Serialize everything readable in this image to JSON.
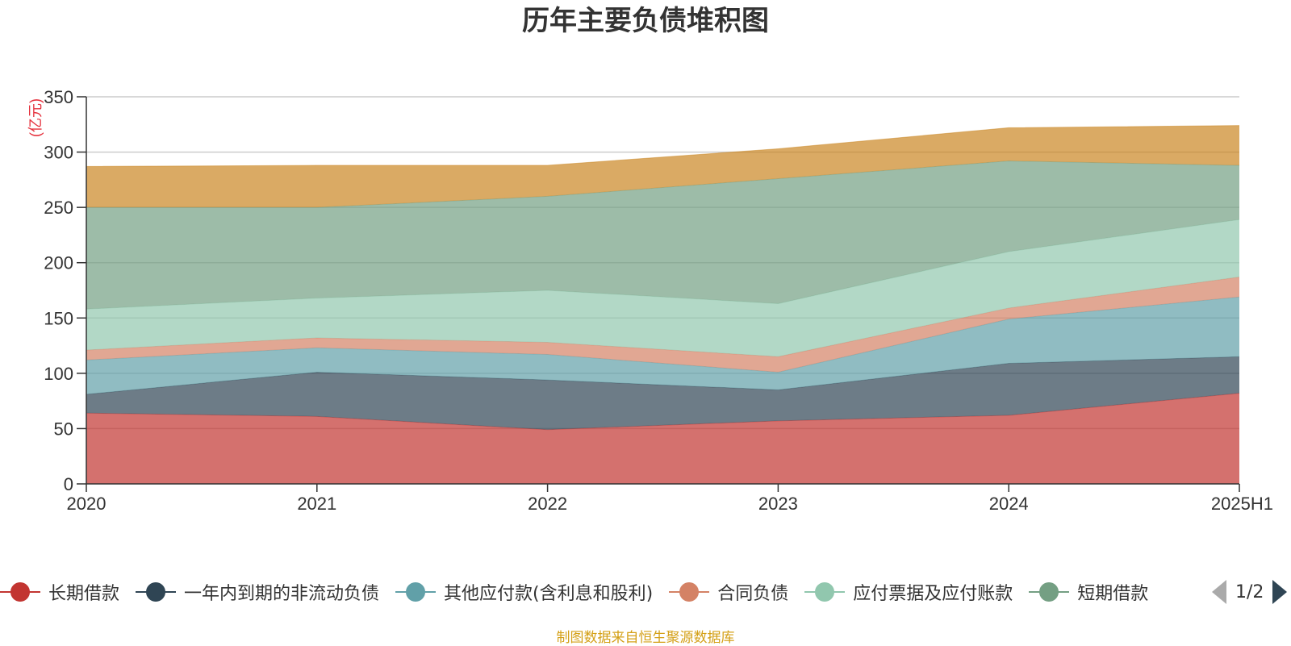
{
  "chart_data": {
    "type": "area",
    "stacked": true,
    "title": "历年主要负债堆积图",
    "ylabel": "(亿元)",
    "xlabel": "",
    "categories": [
      "2020",
      "2021",
      "2022",
      "2023",
      "2024",
      "2025H1"
    ],
    "ylim": [
      0,
      350
    ],
    "yticks": [
      0,
      50,
      100,
      150,
      200,
      250,
      300,
      350
    ],
    "grid": true,
    "legend_position": "bottom",
    "series": [
      {
        "name": "长期借款",
        "color": "#c23531",
        "values": [
          64,
          61,
          49,
          57,
          62,
          82
        ]
      },
      {
        "name": "一年内到期的非流动负债",
        "color": "#2f4554",
        "values": [
          17,
          40,
          45,
          28,
          47,
          33
        ]
      },
      {
        "name": "其他应付款(含利息和股利)",
        "color": "#61a0a8",
        "values": [
          31,
          22,
          23,
          16,
          40,
          54
        ]
      },
      {
        "name": "合同负债",
        "color": "#d48265",
        "values": [
          9,
          9,
          11,
          14,
          10,
          18
        ]
      },
      {
        "name": "应付票据及应付账款",
        "color": "#91c7ae",
        "values": [
          37,
          36,
          47,
          48,
          51,
          52
        ]
      },
      {
        "name": "短期借款",
        "color": "#749f83",
        "values": [
          92,
          82,
          85,
          113,
          82,
          49
        ]
      },
      {
        "name": "",
        "color": "#ca8622",
        "values": [
          37,
          38,
          28,
          27,
          30,
          36
        ]
      }
    ]
  },
  "legend": {
    "items": [
      {
        "label": "长期借款",
        "color": "#c23531"
      },
      {
        "label": "一年内到期的非流动负债",
        "color": "#2f4554"
      },
      {
        "label": "其他应付款(含利息和股利)",
        "color": "#61a0a8"
      },
      {
        "label": "合同负债",
        "color": "#d48265"
      },
      {
        "label": "应付票据及应付账款",
        "color": "#91c7ae"
      },
      {
        "label": "短期借款",
        "color": "#749f83"
      }
    ],
    "page_indicator": "1/2"
  },
  "source_note": "制图数据来自恒生聚源数据库"
}
